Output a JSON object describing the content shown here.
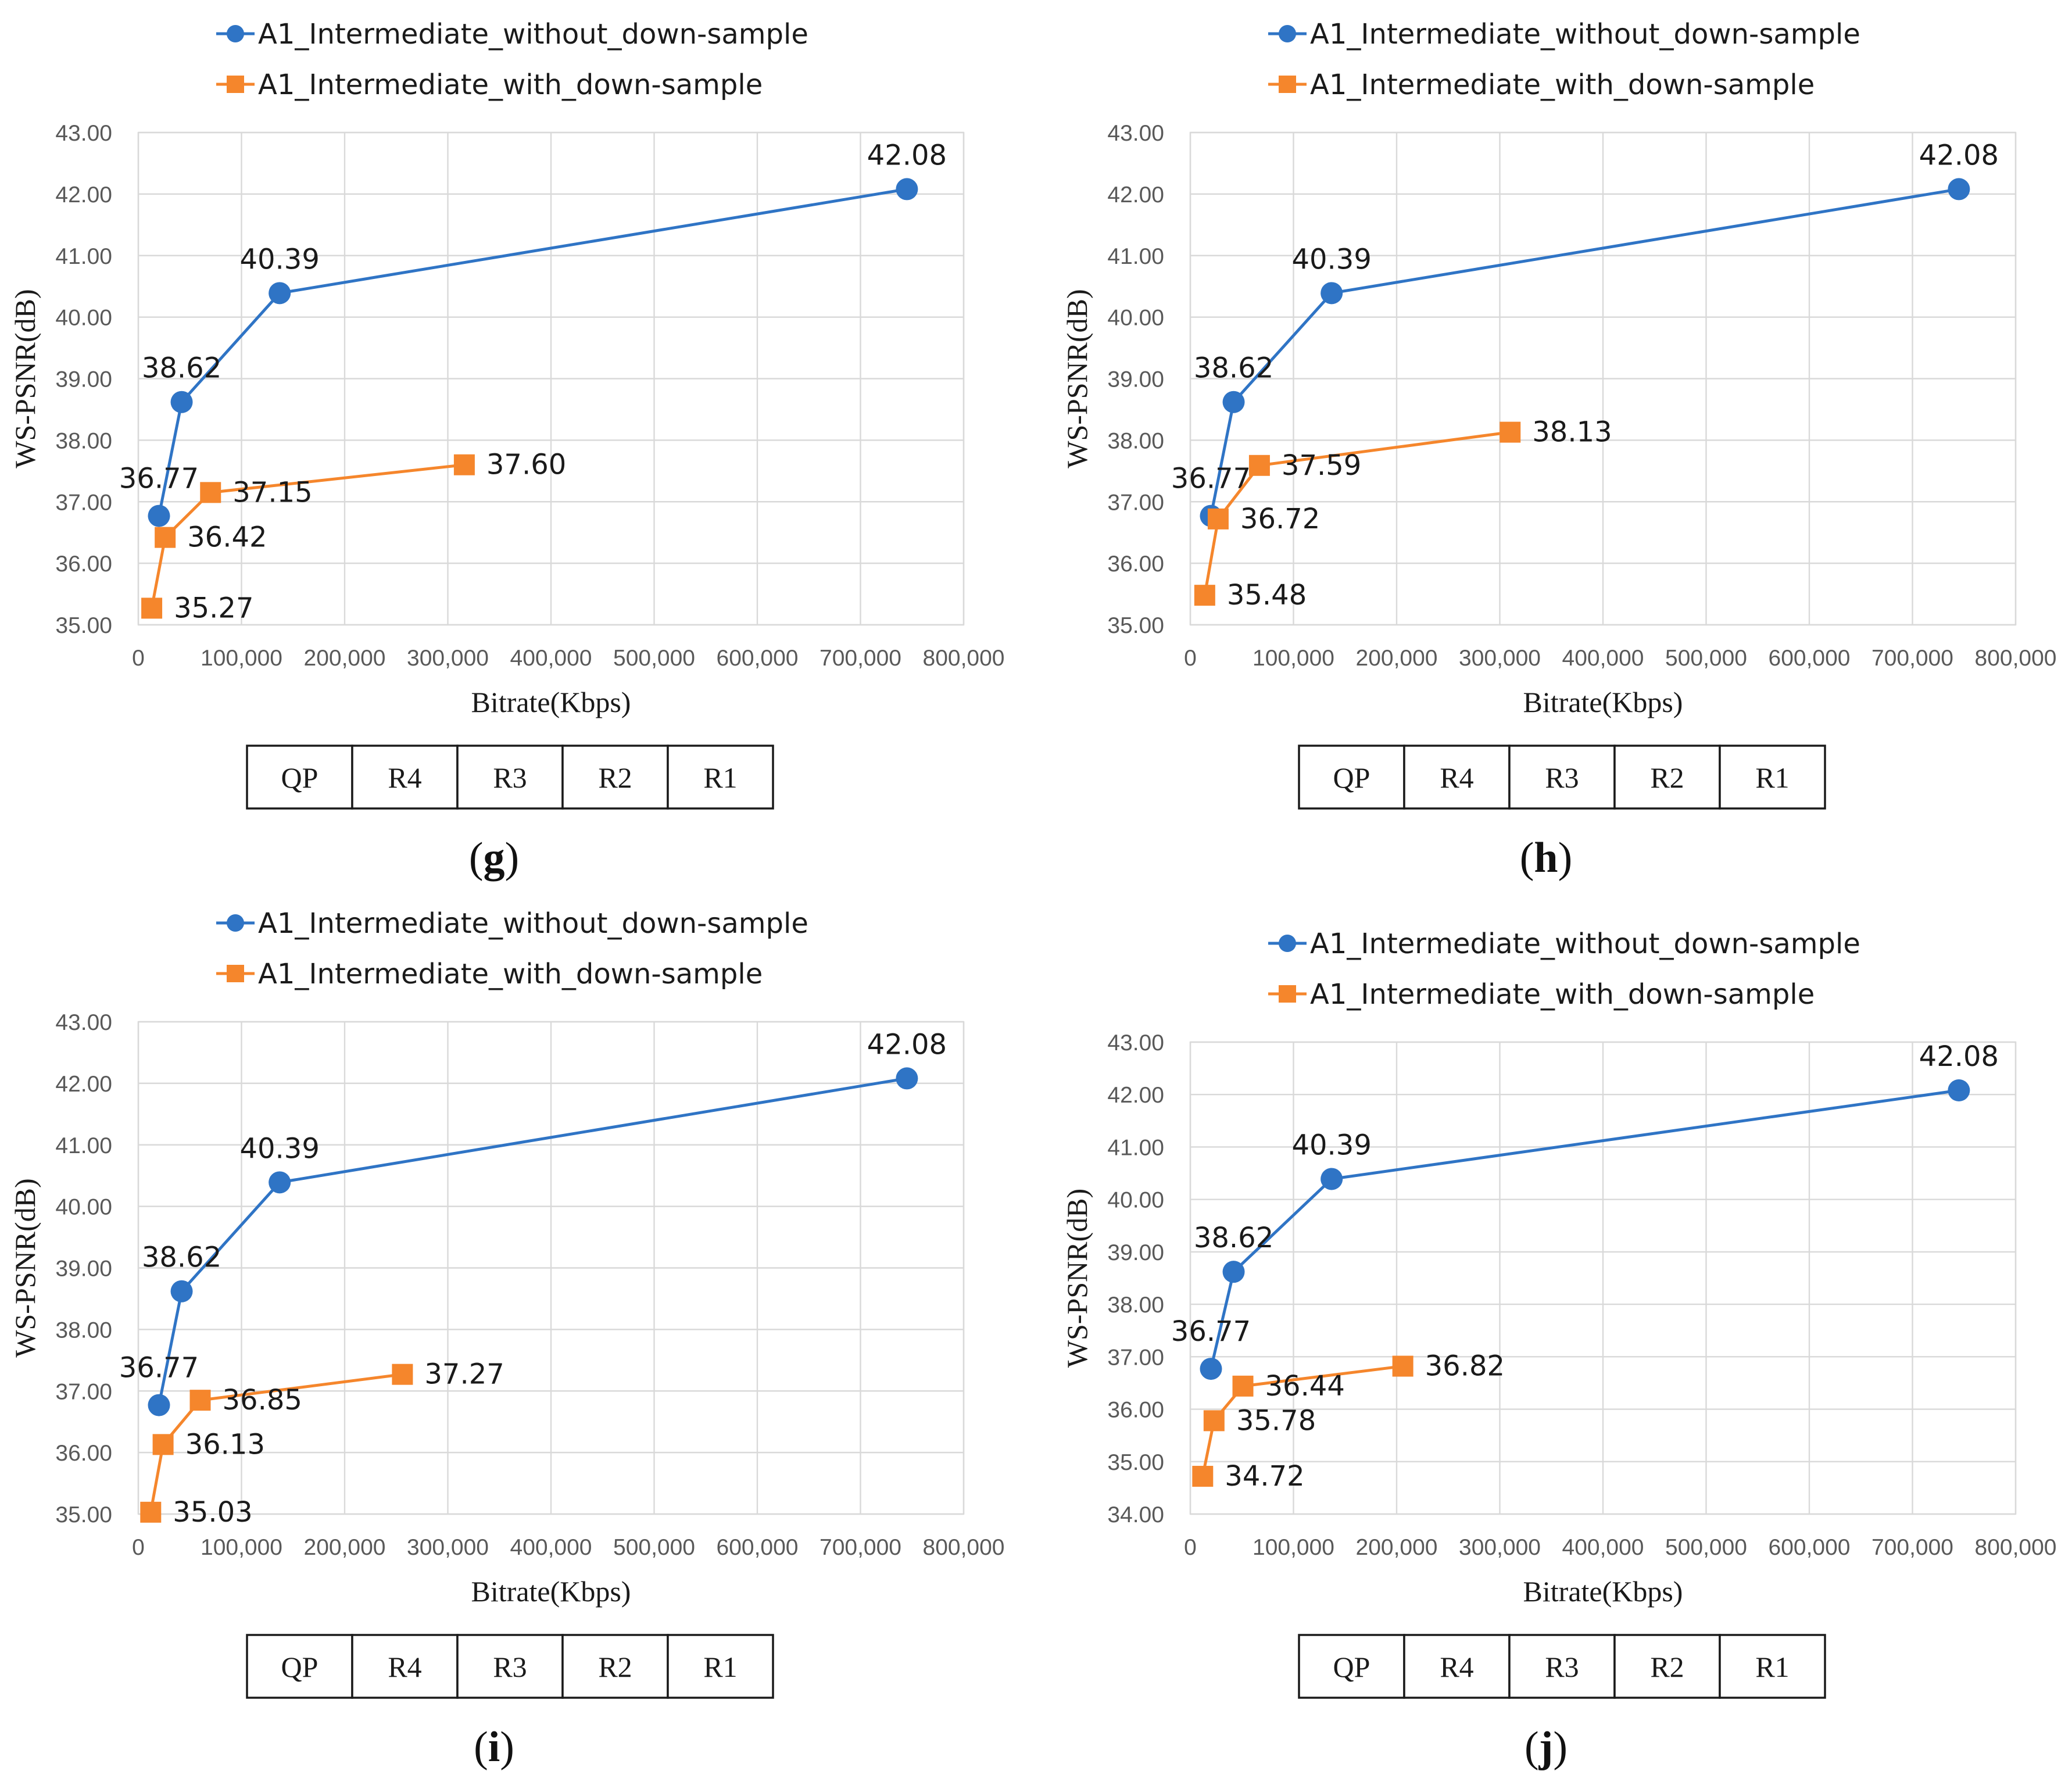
{
  "colors": {
    "series_without": "#2f74c5",
    "series_with": "#f5862c",
    "grid": "#d9d9d9",
    "text": "#1a1a1a"
  },
  "chart_data": [
    {
      "panel_label": "g",
      "type": "line",
      "xlabel": "Bitrate(Kbps)",
      "ylabel": "WS-PSNR(dB)",
      "xlim": [
        0,
        800000
      ],
      "ylim": [
        35,
        43
      ],
      "x_ticks": [
        "0",
        "100,000",
        "200,000",
        "300,000",
        "400,000",
        "500,000",
        "600,000",
        "700,000",
        "800,000"
      ],
      "y_ticks": [
        "35.00",
        "36.00",
        "37.00",
        "38.00",
        "39.00",
        "40.00",
        "41.00",
        "42.00",
        "43.00"
      ],
      "legend_position": "top",
      "series": [
        {
          "name": "A1_Intermediate_without_down-sample",
          "marker": "circle",
          "x": [
            20000,
            42000,
            137000,
            745000
          ],
          "y": [
            36.77,
            38.62,
            40.39,
            42.08
          ],
          "labels": [
            "36.77",
            "38.62",
            "40.39",
            "42.08"
          ]
        },
        {
          "name": "A1_Intermediate_with_down-sample",
          "marker": "square",
          "x": [
            13000,
            26000,
            70000,
            316000
          ],
          "y": [
            35.27,
            36.42,
            37.15,
            37.6
          ],
          "labels": [
            "35.27",
            "36.42",
            "37.15",
            "37.60"
          ]
        }
      ],
      "qp_table": [
        "QP",
        "R4",
        "R3",
        "R2",
        "R1"
      ]
    },
    {
      "panel_label": "h",
      "type": "line",
      "xlabel": "Bitrate(Kbps)",
      "ylabel": "WS-PSNR(dB)",
      "xlim": [
        0,
        800000
      ],
      "ylim": [
        35,
        43
      ],
      "x_ticks": [
        "0",
        "100,000",
        "200,000",
        "300,000",
        "400,000",
        "500,000",
        "600,000",
        "700,000",
        "800,000"
      ],
      "y_ticks": [
        "35.00",
        "36.00",
        "37.00",
        "38.00",
        "39.00",
        "40.00",
        "41.00",
        "42.00",
        "43.00"
      ],
      "legend_position": "top",
      "series": [
        {
          "name": "A1_Intermediate_without_down-sample",
          "marker": "circle",
          "x": [
            20000,
            42000,
            137000,
            745000
          ],
          "y": [
            36.77,
            38.62,
            40.39,
            42.08
          ],
          "labels": [
            "36.77",
            "38.62",
            "40.39",
            "42.08"
          ]
        },
        {
          "name": "A1_Intermediate_with_down-sample",
          "marker": "square",
          "x": [
            14000,
            27000,
            67000,
            310000
          ],
          "y": [
            35.48,
            36.72,
            37.59,
            38.13
          ],
          "labels": [
            "35.48",
            "36.72",
            "37.59",
            "38.13"
          ]
        }
      ],
      "qp_table": [
        "QP",
        "R4",
        "R3",
        "R2",
        "R1"
      ]
    },
    {
      "panel_label": "i",
      "type": "line",
      "xlabel": "Bitrate(Kbps)",
      "ylabel": "WS-PSNR(dB)",
      "xlim": [
        0,
        800000
      ],
      "ylim": [
        35,
        43
      ],
      "x_ticks": [
        "0",
        "100,000",
        "200,000",
        "300,000",
        "400,000",
        "500,000",
        "600,000",
        "700,000",
        "800,000"
      ],
      "y_ticks": [
        "35.00",
        "36.00",
        "37.00",
        "38.00",
        "39.00",
        "40.00",
        "41.00",
        "42.00",
        "43.00"
      ],
      "legend_position": "top",
      "series": [
        {
          "name": "A1_Intermediate_without_down-sample",
          "marker": "circle",
          "x": [
            20000,
            42000,
            137000,
            745000
          ],
          "y": [
            36.77,
            38.62,
            40.39,
            42.08
          ],
          "labels": [
            "36.77",
            "38.62",
            "40.39",
            "42.08"
          ]
        },
        {
          "name": "A1_Intermediate_with_down-sample",
          "marker": "square",
          "x": [
            12000,
            24000,
            60000,
            256000
          ],
          "y": [
            35.03,
            36.13,
            36.85,
            37.27
          ],
          "labels": [
            "35.03",
            "36.13",
            "36.85",
            "37.27"
          ]
        }
      ],
      "qp_table": [
        "QP",
        "R4",
        "R3",
        "R2",
        "R1"
      ]
    },
    {
      "panel_label": "j",
      "type": "line",
      "xlabel": "Bitrate(Kbps)",
      "ylabel": "WS-PSNR(dB)",
      "xlim": [
        0,
        800000
      ],
      "ylim": [
        34,
        43
      ],
      "x_ticks": [
        "0",
        "100,000",
        "200,000",
        "300,000",
        "400,000",
        "500,000",
        "600,000",
        "700,000",
        "800,000"
      ],
      "y_ticks": [
        "34.00",
        "35.00",
        "36.00",
        "37.00",
        "38.00",
        "39.00",
        "40.00",
        "41.00",
        "42.00",
        "43.00"
      ],
      "legend_position": "top",
      "series": [
        {
          "name": "A1_Intermediate_without_down-sample",
          "marker": "circle",
          "x": [
            20000,
            42000,
            137000,
            745000
          ],
          "y": [
            36.77,
            38.62,
            40.39,
            42.08
          ],
          "labels": [
            "36.77",
            "38.62",
            "40.39",
            "42.08"
          ]
        },
        {
          "name": "A1_Intermediate_with_down-sample",
          "marker": "square",
          "x": [
            12000,
            23000,
            51000,
            206000
          ],
          "y": [
            34.72,
            35.78,
            36.44,
            36.82
          ],
          "labels": [
            "34.72",
            "35.78",
            "36.44",
            "36.82"
          ]
        }
      ],
      "qp_table": [
        "QP",
        "R4",
        "R3",
        "R2",
        "R1"
      ]
    }
  ]
}
